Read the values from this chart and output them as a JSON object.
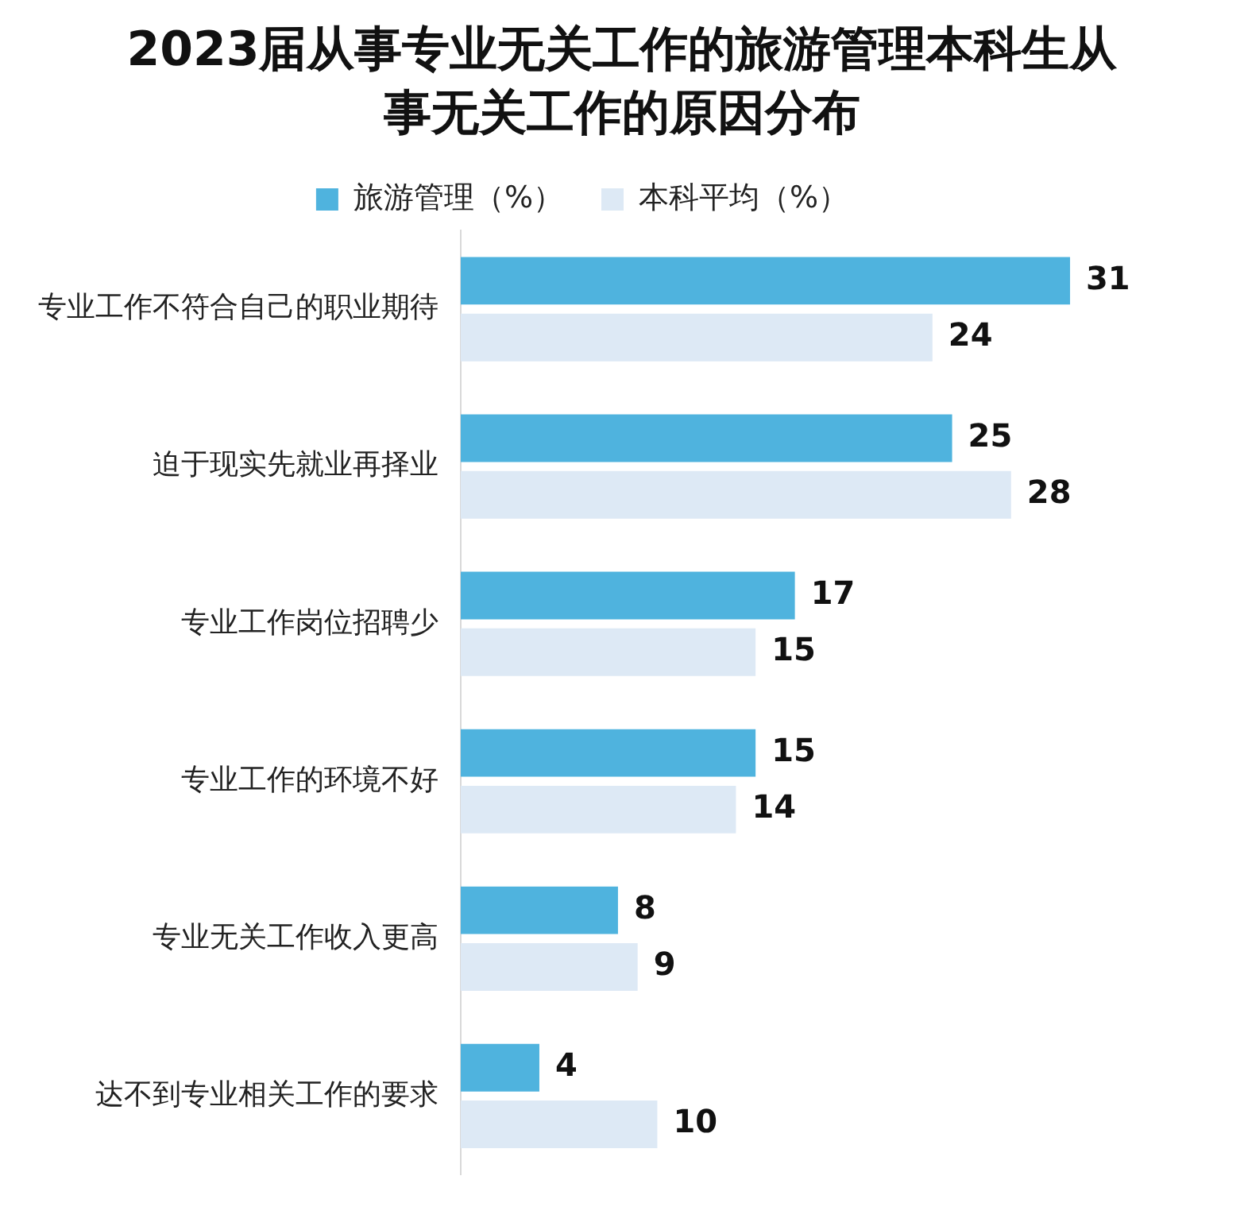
{
  "chart_data": {
    "type": "bar",
    "orientation": "horizontal",
    "title": "2023届从事专业无关工作的旅游管理本科生从事无关工作的原因分布",
    "categories": [
      "专业工作不符合自己的职业期待",
      "迫于现实先就业再择业",
      "专业工作岗位招聘少",
      "专业工作的环境不好",
      "专业无关工作收入更高",
      "达不到专业相关工作的要求"
    ],
    "series": [
      {
        "name": "旅游管理（%）",
        "color": "#4fb3de",
        "values": [
          31,
          25,
          17,
          15,
          8,
          4
        ]
      },
      {
        "name": "本科平均（%）",
        "color": "#dde9f5",
        "values": [
          24,
          28,
          15,
          14,
          9,
          10
        ]
      }
    ],
    "data_labels": true,
    "legend": "top",
    "grid": false
  }
}
